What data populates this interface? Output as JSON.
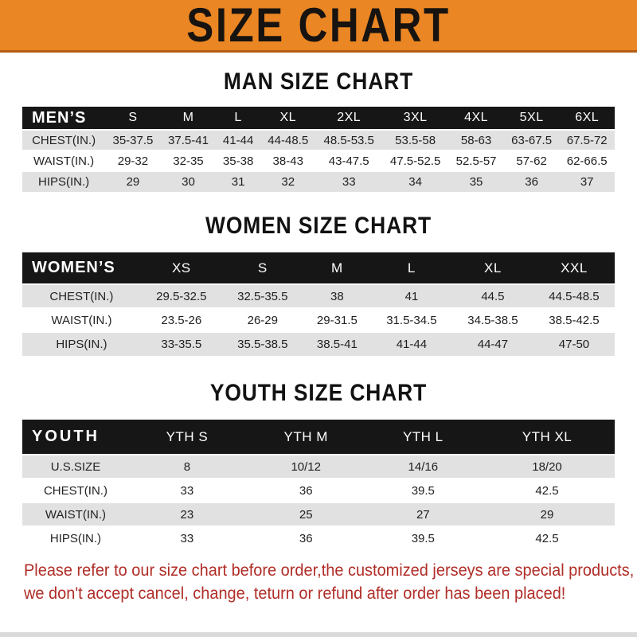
{
  "banner": {
    "title": "SIZE CHART"
  },
  "colors": {
    "banner_background": "#EA8623",
    "banner_text": "#171310",
    "table_header_background": "#161616",
    "table_header_text": "#FFFFFF",
    "row_stripe_gray": "#E2E1E1",
    "notice_text_red": "#B02E28"
  },
  "sections": [
    {
      "title": "MAN SIZE CHART",
      "table": {
        "corner_label": "MEN’S",
        "columns": [
          "S",
          "M",
          "L",
          "XL",
          "2XL",
          "3XL",
          "4XL",
          "5XL",
          "6XL"
        ],
        "rows": [
          {
            "label": "CHEST(IN.)",
            "values": [
              "35-37.5",
              "37.5-41",
              "41-44",
              "44-48.5",
              "48.5-53.5",
              "53.5-58",
              "58-63",
              "63-67.5",
              "67.5-72"
            ]
          },
          {
            "label": "WAIST(IN.)",
            "values": [
              "29-32",
              "32-35",
              "35-38",
              "38-43",
              "43-47.5",
              "47.5-52.5",
              "52.5-57",
              "57-62",
              "62-66.5"
            ]
          },
          {
            "label": "HIPS(IN.)",
            "values": [
              "29",
              "30",
              "31",
              "32",
              "33",
              "34",
              "35",
              "36",
              "37"
            ]
          }
        ]
      }
    },
    {
      "title": "WOMEN SIZE CHART",
      "table": {
        "corner_label": "WOMEN’S",
        "columns": [
          "XS",
          "S",
          "M",
          "L",
          "XL",
          "XXL"
        ],
        "rows": [
          {
            "label": "CHEST(IN.)",
            "values": [
              "29.5-32.5",
              "32.5-35.5",
              "38",
              "41",
              "44.5",
              "44.5-48.5"
            ]
          },
          {
            "label": "WAIST(IN.)",
            "values": [
              "23.5-26",
              "26-29",
              "29-31.5",
              "31.5-34.5",
              "34.5-38.5",
              "38.5-42.5"
            ]
          },
          {
            "label": "HIPS(IN.)",
            "values": [
              "33-35.5",
              "35.5-38.5",
              "38.5-41",
              "41-44",
              "44-47",
              "47-50"
            ]
          }
        ]
      }
    },
    {
      "title": "YOUTH SIZE CHART",
      "table": {
        "corner_label": "YOUTH",
        "columns": [
          "YTH S",
          "YTH M",
          "YTH L",
          "YTH XL"
        ],
        "rows": [
          {
            "label": "U.S.SIZE",
            "values": [
              "8",
              "10/12",
              "14/16",
              "18/20"
            ]
          },
          {
            "label": "CHEST(IN.)",
            "values": [
              "33",
              "36",
              "39.5",
              "42.5"
            ]
          },
          {
            "label": "WAIST(IN.)",
            "values": [
              "23",
              "25",
              "27",
              "29"
            ]
          },
          {
            "label": "HIPS(IN.)",
            "values": [
              "33",
              "36",
              "39.5",
              "42.5"
            ]
          }
        ]
      }
    }
  ],
  "footer": {
    "line1": "Please refer to our size chart before order,the customized jerseys are special products,",
    "line2": "we don't accept cancel, change, teturn or refund after order has been placed!"
  }
}
